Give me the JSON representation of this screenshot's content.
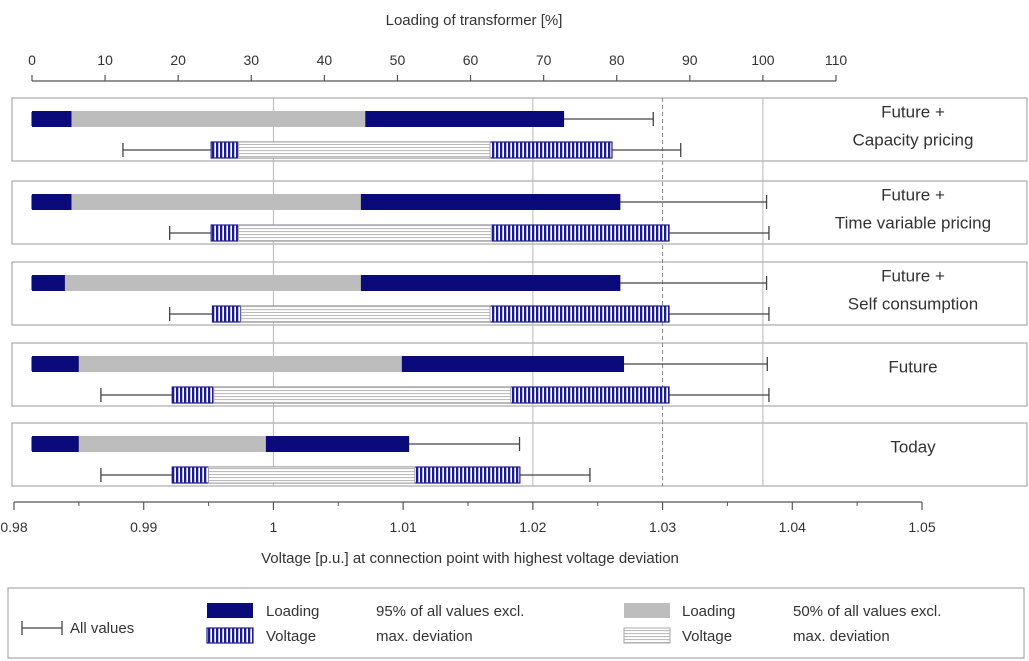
{
  "chart_data": {
    "type": "bar",
    "top_axis": {
      "label": "Loading of transformer [%]",
      "range": [
        0,
        110
      ],
      "ticks": [
        0,
        10,
        20,
        30,
        40,
        50,
        60,
        70,
        80,
        90,
        100,
        110
      ]
    },
    "bottom_axis": {
      "label": "Voltage [p.u.] at connection point with highest voltage deviation",
      "range": [
        0.98,
        1.05
      ],
      "ticks": [
        0.98,
        0.99,
        1,
        1.01,
        1.02,
        1.03,
        1.04,
        1.05
      ],
      "tick_labels": [
        "0.98",
        "0.99",
        "1",
        "1.01",
        "1.02",
        "1.03",
        "1.04",
        "1.05"
      ]
    },
    "reference_lines": {
      "voltage_solid": [
        1.0,
        1.02
      ],
      "loading_solid": [
        100
      ],
      "voltage_dashed": [
        1.03
      ]
    },
    "categories": [
      {
        "name": "cap",
        "label_lines": [
          "Future +",
          "Capacity pricing"
        ],
        "loading": {
          "min": 0,
          "q25": 5.4,
          "q50_start": 5.4,
          "q50_end": 45.6,
          "q95": 72.8,
          "max": 85.0
        },
        "voltage": {
          "min": 0.9884,
          "q95_start": 0.9952,
          "q50_start": 0.9973,
          "q50_end": 1.0167,
          "q95_end": 1.0261,
          "max": 1.0314
        }
      },
      {
        "name": "tvp",
        "label_lines": [
          "Future +",
          "Time variable pricing"
        ],
        "loading": {
          "min": 0,
          "q25": 5.4,
          "q50_start": 5.4,
          "q50_end": 45.0,
          "q95": 80.5,
          "max": 100.5
        },
        "voltage": {
          "min": 0.992,
          "q95_start": 0.9952,
          "q50_start": 0.9973,
          "q50_end": 1.0168,
          "q95_end": 1.0305,
          "max": 1.0382
        }
      },
      {
        "name": "self",
        "label_lines": [
          "Future +",
          "Self consumption"
        ],
        "loading": {
          "min": 0,
          "q25": 4.5,
          "q50_start": 4.5,
          "q50_end": 45.0,
          "q95": 80.5,
          "max": 100.5
        },
        "voltage": {
          "min": 0.992,
          "q95_start": 0.9953,
          "q50_start": 0.9975,
          "q50_end": 1.0167,
          "q95_end": 1.0305,
          "max": 1.0382
        }
      },
      {
        "name": "future",
        "label_lines": [
          "Future"
        ],
        "loading": {
          "min": 0,
          "q25": 6.4,
          "q50_start": 6.4,
          "q50_end": 50.6,
          "q95": 81.0,
          "max": 100.6
        },
        "voltage": {
          "min": 0.9867,
          "q95_start": 0.9922,
          "q50_start": 0.9954,
          "q50_end": 1.0183,
          "q95_end": 1.0305,
          "max": 1.0382
        }
      },
      {
        "name": "today",
        "label_lines": [
          "Today"
        ],
        "loading": {
          "min": 0,
          "q25": 6.4,
          "q50_start": 6.4,
          "q50_end": 32.0,
          "q95": 51.6,
          "max": 66.7
        },
        "voltage": {
          "min": 0.9867,
          "q95_start": 0.9922,
          "q50_start": 0.995,
          "q50_end": 1.0109,
          "q95_end": 1.019,
          "max": 1.0244
        }
      }
    ],
    "legend": {
      "all_values": "All values",
      "loading_label": "Loading",
      "voltage_label": "Voltage",
      "p95_text": [
        "95% of all values excl.",
        "max. deviation"
      ],
      "p50_text": [
        "50% of all values excl.",
        "max. deviation"
      ]
    },
    "colors": {
      "loading_95": "#0a0a7a",
      "loading_50": "#bdbdbd",
      "voltage_95_stripe": "#1c1c8c",
      "voltage_50_stripe": "#bcbcbc",
      "frame": "#9a9a9a",
      "axis": "#555555",
      "gridline": "#b8b8b8"
    }
  }
}
